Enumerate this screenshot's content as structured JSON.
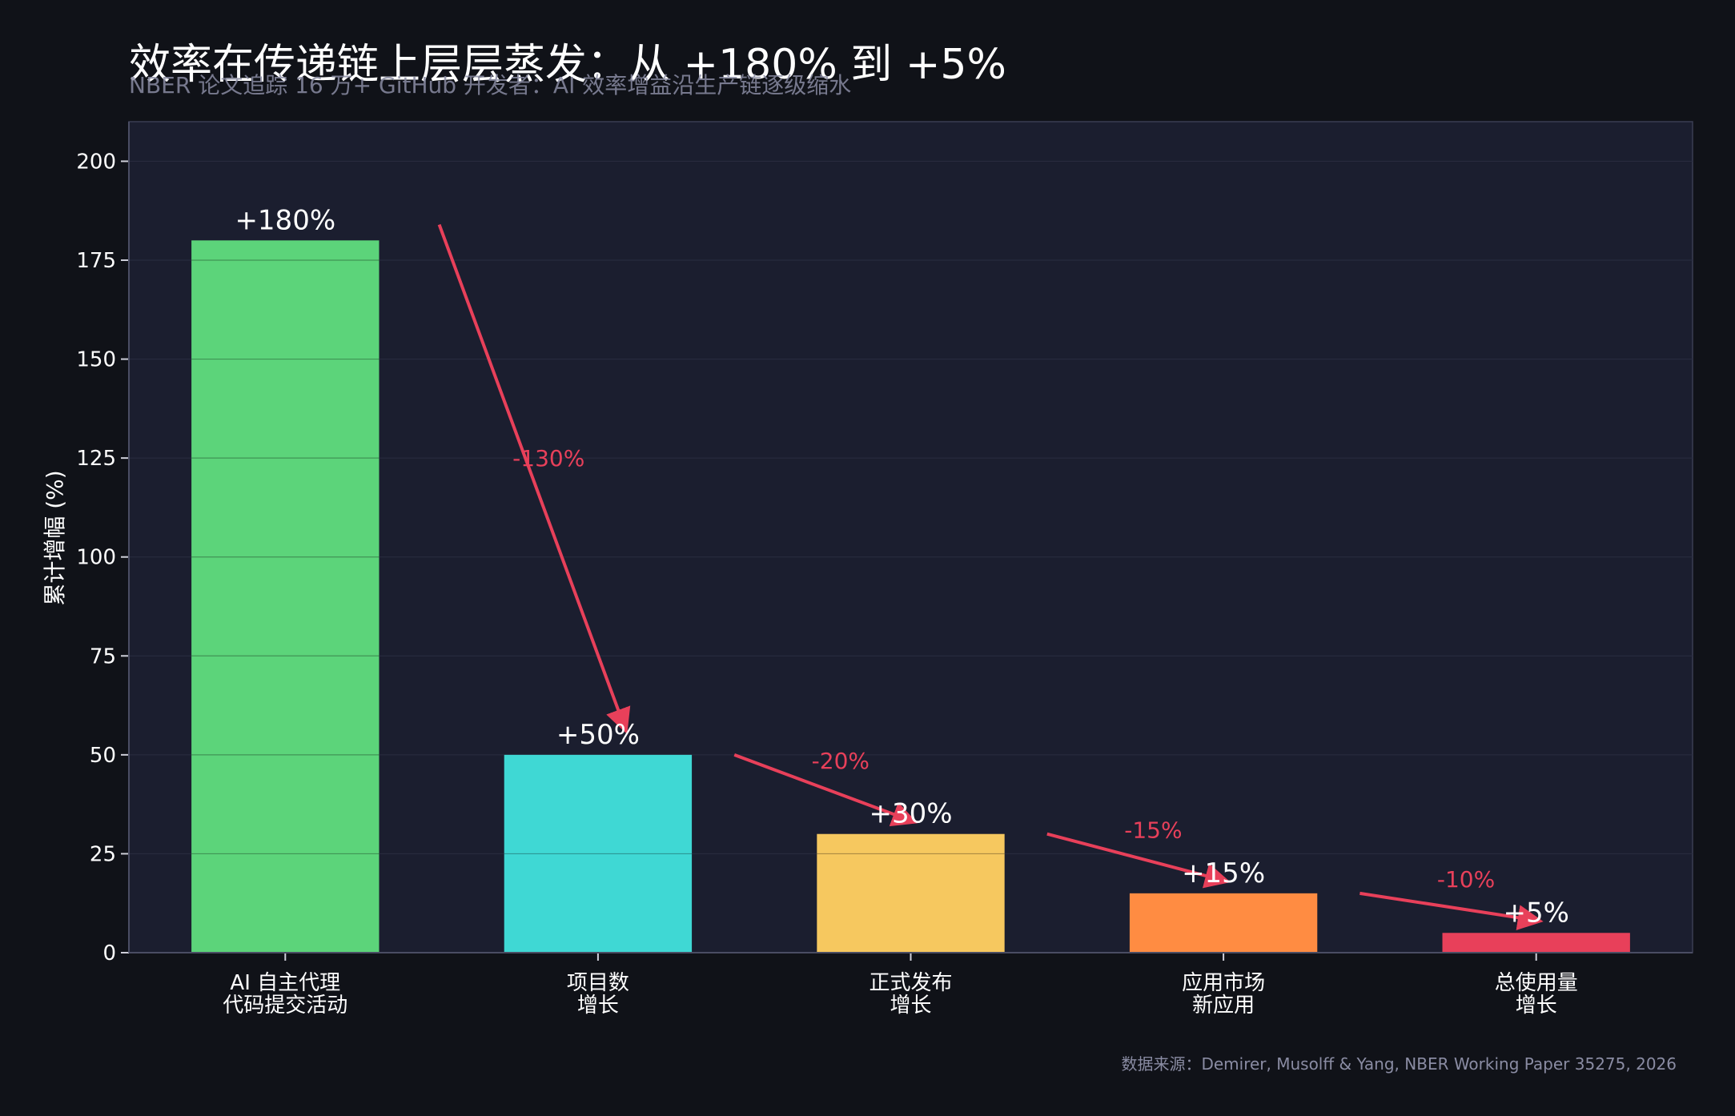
{
  "colors": {
    "background": "#101218",
    "plot_background": "#1b1e2f",
    "grid": "#2a2d40",
    "axis": "#4a4d63",
    "text": "#ffffff",
    "subtitle": "#8a8ca3",
    "arrow": "#e8405a",
    "bar_colors": [
      "#5cd47a",
      "#3fd8d4",
      "#f6c85f",
      "#ff8c42",
      "#e8405a"
    ]
  },
  "chart_data": {
    "type": "bar",
    "title": "效率在传递链上层层蒸发：从 +180% 到 +5%",
    "subtitle": "NBER 论文追踪 16 万+ GitHub 开发者：AI 效率增益沿生产链逐级缩水",
    "ylabel": "累计增幅 (%)",
    "xlabel": "",
    "ylim": [
      0,
      200
    ],
    "yticks": [
      0,
      25,
      50,
      75,
      100,
      125,
      150,
      175,
      200
    ],
    "grid": true,
    "categories": [
      [
        "AI 自主代理",
        "代码提交活动"
      ],
      [
        "项目数",
        "增长"
      ],
      [
        "正式发布",
        "增长"
      ],
      [
        "应用市场",
        "新应用"
      ],
      [
        "总使用量",
        "增长"
      ]
    ],
    "values": [
      180,
      50,
      30,
      15,
      5
    ],
    "value_labels": [
      "+180%",
      "+50%",
      "+30%",
      "+15%",
      "+5%"
    ],
    "drops": [
      {
        "from": 0,
        "to": 1,
        "label": "-130%"
      },
      {
        "from": 1,
        "to": 2,
        "label": "-20%"
      },
      {
        "from": 2,
        "to": 3,
        "label": "-15%"
      },
      {
        "from": 3,
        "to": 4,
        "label": "-10%"
      }
    ],
    "source": "数据来源：Demirer, Musolff & Yang, NBER Working Paper 35275, 2026"
  }
}
